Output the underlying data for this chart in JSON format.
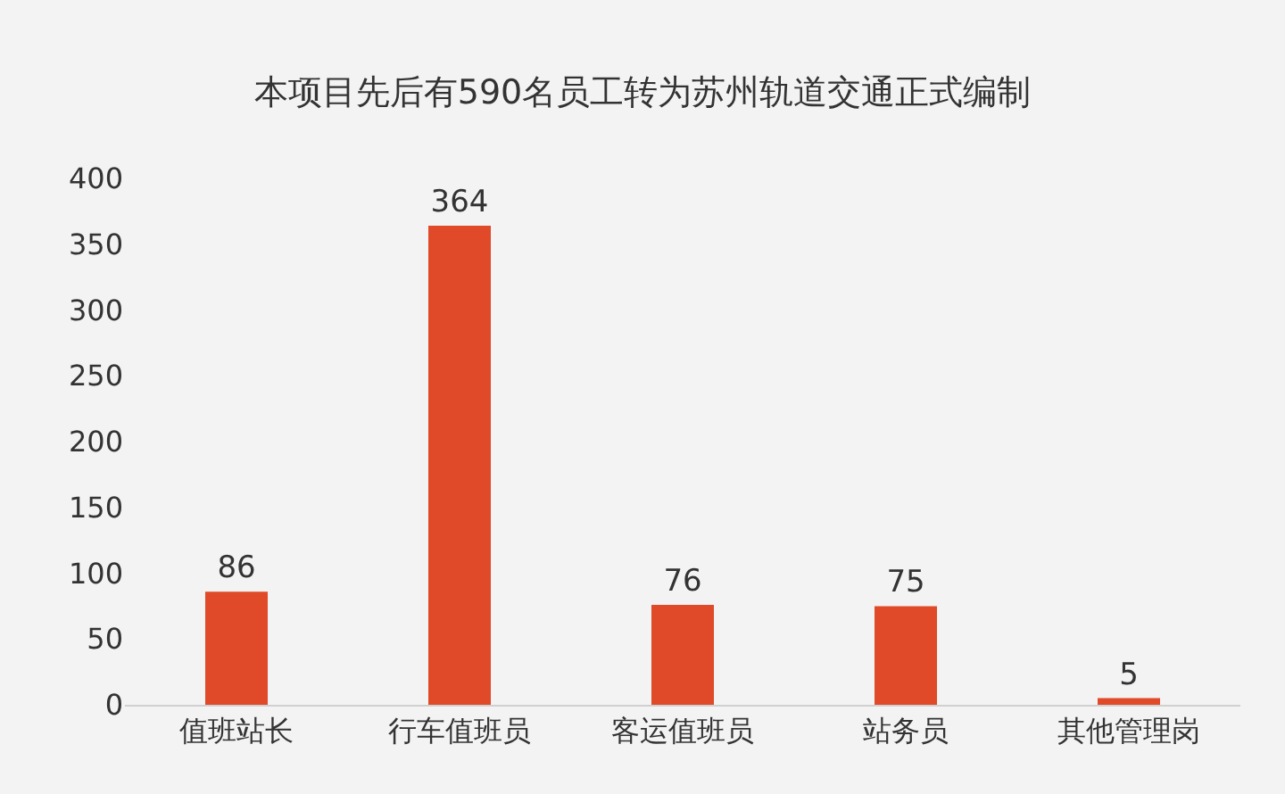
{
  "chart_data": {
    "type": "bar",
    "title": "本项目先后有590名员工转为苏州轨道交通正式编制",
    "categories": [
      "值班站长",
      "行车值班员",
      "客运值班员",
      "站务员",
      "其他管理岗"
    ],
    "values": [
      86,
      364,
      76,
      75,
      5
    ],
    "color": "#e04a28",
    "ylim": [
      0,
      400
    ],
    "yticks": [
      0,
      50,
      100,
      150,
      200,
      250,
      300,
      350,
      400
    ],
    "grid": false,
    "data_labels": true
  }
}
